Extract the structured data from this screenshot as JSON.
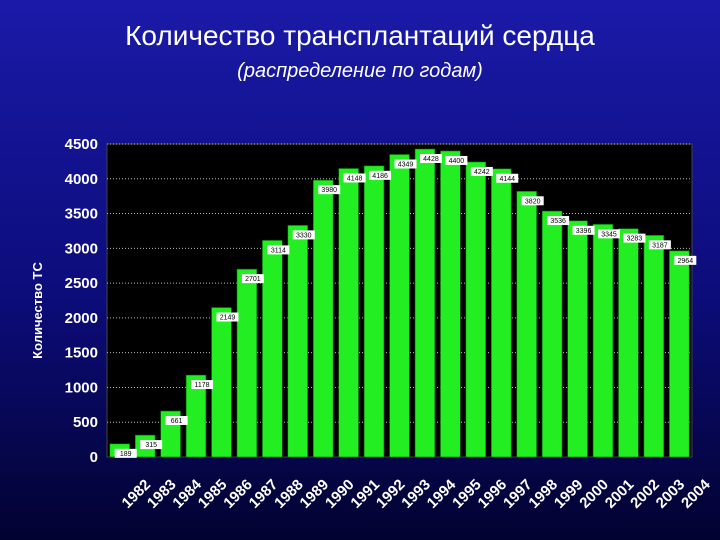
{
  "title": "Количество трансплантаций сердца",
  "subtitle": "(распределение по годам)",
  "colors": {
    "bar": "#22ee22",
    "plot_bg": "#000000",
    "label_bg": "#ffffff"
  },
  "chart_data": {
    "type": "bar",
    "title": "Количество трансплантаций сердца",
    "subtitle": "(распределение по годам)",
    "ylabel": "Количество ТС",
    "xlabel": "",
    "ylim": [
      0,
      4500
    ],
    "yticks": [
      "0",
      "500",
      "1000",
      "1500",
      "2000",
      "2500",
      "3000",
      "3500",
      "4000",
      "4500"
    ],
    "grid": "horizontal dotted",
    "categories": [
      "1982",
      "1983",
      "1984",
      "1985",
      "1986",
      "1987",
      "1988",
      "1989",
      "1990",
      "1991",
      "1992",
      "1993",
      "1994",
      "1995",
      "1996",
      "1997",
      "1998",
      "1999",
      "2000",
      "2001",
      "2002",
      "2003",
      "2004"
    ],
    "values": [
      189,
      315,
      661,
      1178,
      2149,
      2701,
      3114,
      3330,
      3980,
      4148,
      4186,
      4349,
      4428,
      4400,
      4242,
      4144,
      3820,
      3536,
      3396,
      3345,
      3283,
      3187,
      2964
    ],
    "data_labels": [
      "189",
      "315",
      "661",
      "1178",
      "2149",
      "2701",
      "3114",
      "3330",
      "3980",
      "4148",
      "4186",
      "4349",
      "4428",
      "4400",
      "4242",
      "4144",
      "3820",
      "3536",
      "3396",
      "3345",
      "3283",
      "3187",
      "2964"
    ]
  }
}
